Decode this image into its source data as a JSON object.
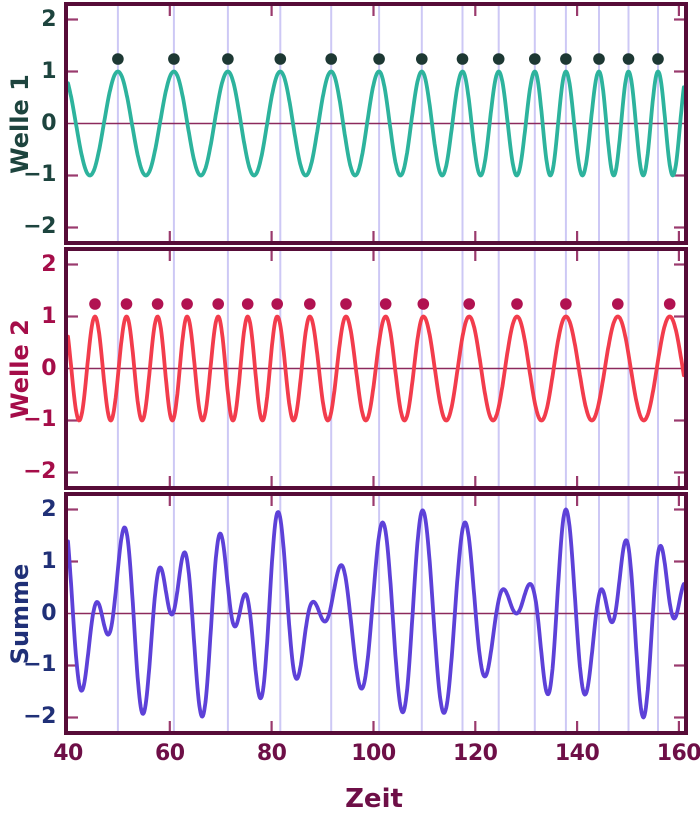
{
  "figure": {
    "x_tick_labels": [
      "40",
      "60",
      "80",
      "100",
      "120",
      "140",
      "160"
    ],
    "y_tick_labels": [
      "2",
      "1",
      "0",
      "−1",
      "−2"
    ],
    "xlabel": "Zeit",
    "colors": {
      "background": "#ffffff",
      "border": "#570c38",
      "tick_marks": "#9a3a6d",
      "zero_line": "#8c2a5d",
      "grid_lines": "#cdc8f5",
      "x_text": "#6e0f47"
    }
  },
  "chart_data": {
    "type": "line",
    "xlabel": "Zeit",
    "x_range": [
      40,
      161
    ],
    "x_ticks": [
      40,
      60,
      80,
      100,
      120,
      140,
      160
    ],
    "y_ticks": [
      2,
      1,
      0,
      -1,
      -2
    ],
    "y_range": [
      -2.26,
      2.26
    ],
    "grid": "vertical gridlines drawn at every Welle 1 peak, spanning all three panels",
    "gridlines_x": [
      49.8,
      60.8,
      71.4,
      81.7,
      91.7,
      101.1,
      109.5,
      117.5,
      124.6,
      131.7,
      137.8,
      144.3,
      150.1,
      155.9
    ],
    "panels": [
      {
        "id": "welle1",
        "label": "Welle 1",
        "wave_color": "#2db39d",
        "text_color": "#1d443e",
        "dot_color": "#1d3833",
        "amplitude": 1,
        "peak_times": [
          49.8,
          60.8,
          71.4,
          81.7,
          91.7,
          101.1,
          109.5,
          117.5,
          124.6,
          131.7,
          137.8,
          144.3,
          150.1,
          155.9
        ],
        "peak_dot_y": 1.24,
        "description": "Sine-like wave, amplitude 1, period shrinking from ~11 to ~5.8 time units (frequency increases left to right); dark dots mark each crest"
      },
      {
        "id": "welle2",
        "label": "Welle 2",
        "wave_color": "#f23c4c",
        "text_color": "#a50d49",
        "dot_color": "#b11251",
        "amplitude": 1,
        "peak_times": [
          45.3,
          51.5,
          57.6,
          63.4,
          69.5,
          75.3,
          81.1,
          87.5,
          94.6,
          102.4,
          109.8,
          118.8,
          128.2,
          137.8,
          148.0,
          158.2
        ],
        "peak_dot_y": 1.24,
        "description": "Sine-like wave, amplitude 1, period growing from ~6 to ~10 time units (frequency decreases left to right); crimson dots mark each crest"
      },
      {
        "id": "summe",
        "label": "Summe",
        "wave_color": "#5d41d8",
        "text_color": "#203077",
        "sum_of": [
          "welle1",
          "welle2"
        ],
        "amplitude_range": [
          -2,
          2
        ],
        "description": "Pointwise sum Welle 1 + Welle 2: irregular beat pattern, envelope reaching ±2 near t≈81 and t≈110 where the two waves are in phase"
      }
    ]
  }
}
